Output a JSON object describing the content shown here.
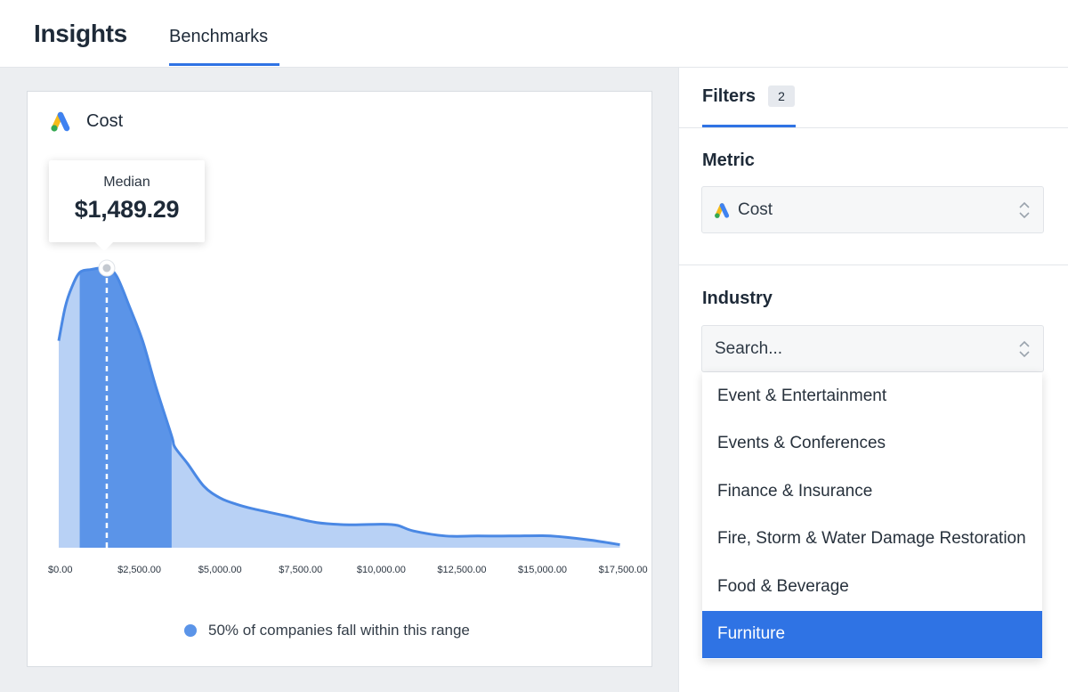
{
  "header": {
    "title": "Insights",
    "tab_label": "Benchmarks"
  },
  "card": {
    "title": "Cost",
    "icon": "google-ads-logo-icon"
  },
  "tooltip": {
    "label": "Median",
    "value": "$1,489.29"
  },
  "legend": {
    "text": "50% of companies fall within this range"
  },
  "chart_data": {
    "type": "area",
    "x_tick_labels": [
      "$0.00",
      "$2,500.00",
      "$5,000.00",
      "$7,500.00",
      "$10,000.00",
      "$12,500.00",
      "$15,000.00",
      "$17,500.00"
    ],
    "x_ticks": [
      0,
      2500,
      5000,
      7500,
      10000,
      12500,
      15000,
      17500
    ],
    "xlim": [
      0,
      17800
    ],
    "ylim": [
      0,
      1
    ],
    "points": [
      [
        0,
        0.74
      ],
      [
        200,
        0.86
      ],
      [
        400,
        0.93
      ],
      [
        650,
        0.984
      ],
      [
        1000,
        0.995
      ],
      [
        1489.29,
        1.0
      ],
      [
        1800,
        0.97
      ],
      [
        2200,
        0.86
      ],
      [
        2600,
        0.74
      ],
      [
        3000,
        0.58
      ],
      [
        3500,
        0.4
      ],
      [
        3600,
        0.36
      ],
      [
        4000,
        0.3
      ],
      [
        4500,
        0.22
      ],
      [
        5000,
        0.178
      ],
      [
        5500,
        0.156
      ],
      [
        6000,
        0.14
      ],
      [
        7000,
        0.115
      ],
      [
        8000,
        0.09
      ],
      [
        9000,
        0.082
      ],
      [
        10000,
        0.084
      ],
      [
        10500,
        0.08
      ],
      [
        11000,
        0.06
      ],
      [
        12000,
        0.042
      ],
      [
        13000,
        0.042
      ],
      [
        14000,
        0.042
      ],
      [
        15000,
        0.043
      ],
      [
        15500,
        0.04
      ],
      [
        16500,
        0.027
      ],
      [
        17400,
        0.011
      ]
    ],
    "median": 1489.29,
    "range_50pct": [
      650,
      3500
    ],
    "colors": {
      "fill_light": "#b8d1f5",
      "fill_range": "#5b94e8",
      "line": "#4a88e4",
      "accent": "#2f73e4"
    },
    "grid": false,
    "legend_position": "bottom-center"
  },
  "filters": {
    "tab_label": "Filters",
    "count": "2",
    "metric": {
      "heading": "Metric",
      "selected": "Cost",
      "icon": "google-ads-logo-icon"
    },
    "industry": {
      "heading": "Industry",
      "placeholder": "Search...",
      "options": [
        "Event & Entertainment",
        "Events & Conferences",
        "Finance & Insurance",
        "Fire, Storm & Water Damage Restoration",
        "Food & Beverage",
        "Furniture"
      ],
      "highlighted": "Furniture"
    }
  }
}
